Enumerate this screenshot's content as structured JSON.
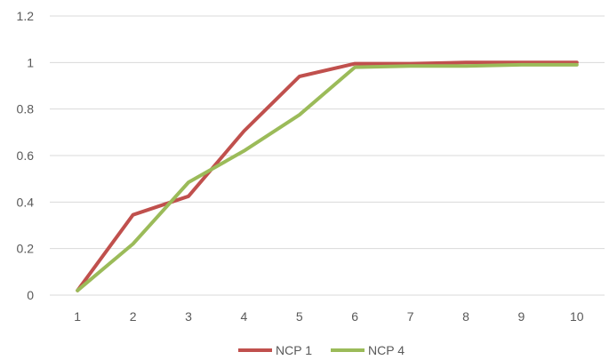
{
  "chart_data": {
    "type": "line",
    "x": [
      1,
      2,
      3,
      4,
      5,
      6,
      7,
      8,
      9,
      10
    ],
    "series": [
      {
        "name": "NCP 1",
        "color": "#C0504D",
        "values": [
          0.02,
          0.345,
          0.425,
          0.705,
          0.94,
          0.995,
          0.995,
          1.0,
          1.0,
          1.0
        ]
      },
      {
        "name": "NCP 4",
        "color": "#9BBB59",
        "values": [
          0.02,
          0.22,
          0.485,
          0.62,
          0.775,
          0.98,
          0.985,
          0.985,
          0.99,
          0.99
        ]
      }
    ],
    "title": "",
    "xlabel": "",
    "ylabel": "",
    "ylim": [
      0,
      1.2
    ],
    "yticks": [
      "0",
      "0.2",
      "0.4",
      "0.6",
      "0.8",
      "1",
      "1.2"
    ],
    "xticks": [
      "1",
      "2",
      "3",
      "4",
      "5",
      "6",
      "7",
      "8",
      "9",
      "10"
    ],
    "grid": "horizontal",
    "legend": "bottom",
    "gridline_color": "#D9D9D9"
  }
}
